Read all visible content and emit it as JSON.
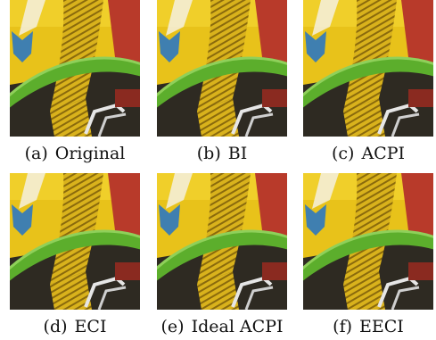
{
  "figure": {
    "panels": [
      {
        "label": "(a)",
        "caption": "Original"
      },
      {
        "label": "(b)",
        "caption": "BI"
      },
      {
        "label": "(c)",
        "caption": "ACPI"
      },
      {
        "label": "(d)",
        "caption": "ECI"
      },
      {
        "label": "(e)",
        "caption": "Ideal ACPI"
      },
      {
        "label": "(f)",
        "caption": "EECI"
      }
    ]
  }
}
